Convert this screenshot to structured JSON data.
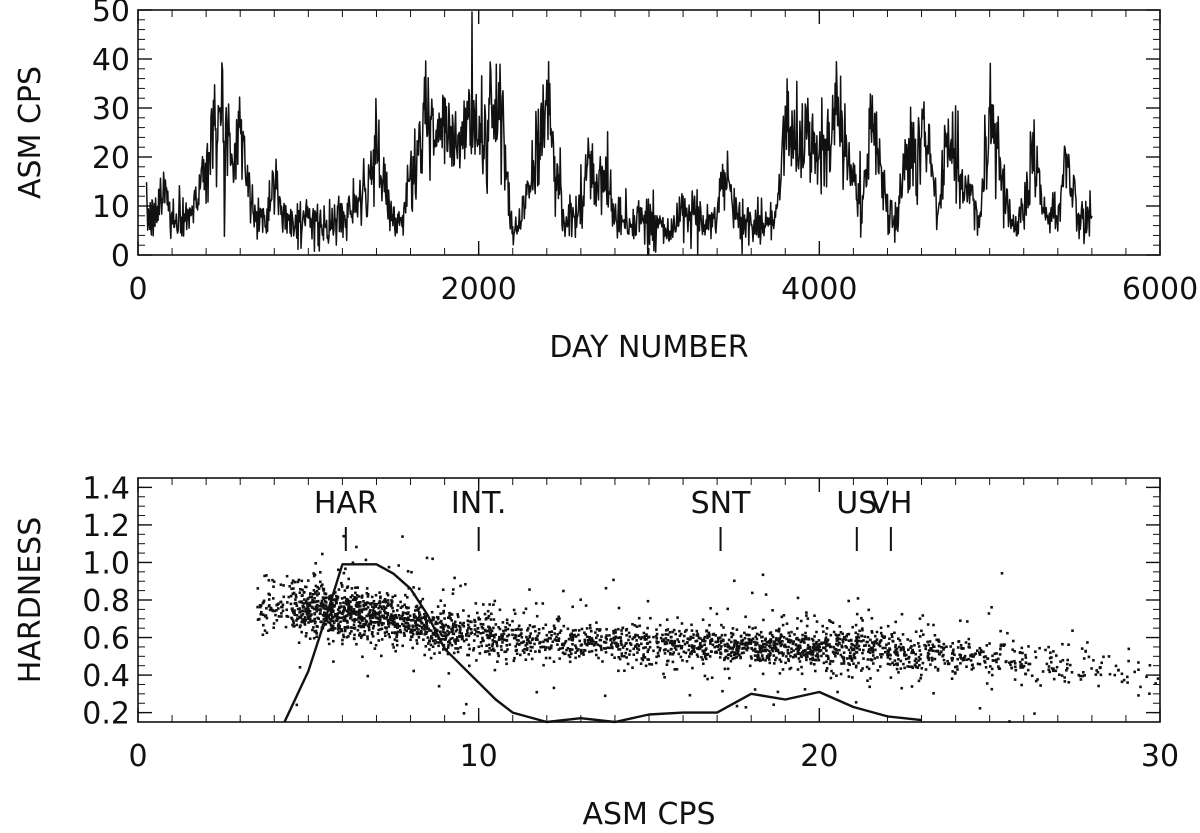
{
  "chart_data": [
    {
      "type": "line",
      "xlabel": "DAY NUMBER",
      "ylabel": "ASM CPS",
      "xlim": [
        0,
        6000
      ],
      "ylim": [
        0,
        50
      ],
      "xticks": [
        "0",
        "2000",
        "4000",
        "6000"
      ],
      "yticks": [
        "0",
        "10",
        "20",
        "30",
        "40",
        "50"
      ],
      "grid": false,
      "color": "#111111",
      "series": [
        {
          "x": [
            50,
            100,
            150,
            200,
            250,
            300,
            350,
            400,
            450,
            500,
            550,
            600,
            650,
            700,
            750,
            800,
            850,
            900,
            950,
            1000,
            1050,
            1100,
            1150,
            1200,
            1250,
            1300,
            1350,
            1400,
            1450,
            1500,
            1550,
            1600,
            1650,
            1700,
            1750,
            1800,
            1850,
            1900,
            1950,
            2000,
            2050,
            2100,
            2150,
            2200,
            2250,
            2300,
            2350,
            2400,
            2450,
            2500,
            2550,
            2600,
            2650,
            2700,
            2750,
            2800,
            2850,
            2900,
            2950,
            3000,
            3050,
            3100,
            3150,
            3200,
            3250,
            3300,
            3350,
            3400,
            3450,
            3500,
            3550,
            3600,
            3650,
            3700,
            3750,
            3800,
            3850,
            3900,
            3950,
            4000,
            4050,
            4100,
            4150,
            4200,
            4250,
            4300,
            4350,
            4400,
            4450,
            4500,
            4550,
            4600,
            4650,
            4700,
            4750,
            4800,
            4850,
            4900,
            4950,
            5000,
            5050,
            5100,
            5150,
            5200,
            5250,
            5300,
            5350,
            5400,
            5450,
            5500,
            5550,
            5600
          ],
          "y": [
            8,
            7,
            14,
            8,
            7,
            9,
            12,
            18,
            30,
            25,
            21,
            26,
            12,
            8,
            7,
            16,
            9,
            6,
            7,
            8,
            6,
            5,
            6,
            7,
            9,
            10,
            14,
            21,
            12,
            7,
            8,
            15,
            22,
            28,
            24,
            26,
            20,
            22,
            30,
            25,
            24,
            32,
            22,
            5,
            8,
            14,
            23,
            30,
            20,
            8,
            7,
            10,
            17,
            14,
            15,
            9,
            7,
            6,
            8,
            7,
            6,
            5,
            6,
            7,
            8,
            7,
            6,
            9,
            16,
            9,
            7,
            6,
            7,
            6,
            8,
            26,
            24,
            22,
            23,
            21,
            25,
            27,
            23,
            16,
            10,
            27,
            20,
            9,
            6,
            21,
            20,
            25,
            20,
            7,
            26,
            21,
            14,
            10,
            8,
            28,
            21,
            10,
            6,
            9,
            24,
            12,
            7,
            8,
            21,
            12,
            7,
            8
          ]
        }
      ]
    },
    {
      "type": "scatter",
      "xlabel": "ASM CPS",
      "ylabel": "HARDNESS",
      "xlim": [
        0,
        30
      ],
      "ylim": [
        0.15,
        1.45
      ],
      "xticks": [
        "0",
        "10",
        "20",
        "30"
      ],
      "yticks": [
        "0.2",
        "0.4",
        "0.6",
        "0.8",
        "1.0",
        "1.2",
        "1.4"
      ],
      "grid": false,
      "color": "#111111",
      "density": [
        {
          "x": 4.0,
          "y": 0.76,
          "n": 70
        },
        {
          "x": 5.0,
          "y": 0.76,
          "n": 220
        },
        {
          "x": 6.0,
          "y": 0.73,
          "n": 260
        },
        {
          "x": 7.0,
          "y": 0.71,
          "n": 230
        },
        {
          "x": 8.0,
          "y": 0.68,
          "n": 190
        },
        {
          "x": 9.0,
          "y": 0.64,
          "n": 150
        },
        {
          "x": 10.0,
          "y": 0.62,
          "n": 120
        },
        {
          "x": 11.0,
          "y": 0.6,
          "n": 100
        },
        {
          "x": 12.0,
          "y": 0.59,
          "n": 90
        },
        {
          "x": 13.0,
          "y": 0.58,
          "n": 90
        },
        {
          "x": 14.0,
          "y": 0.57,
          "n": 90
        },
        {
          "x": 15.0,
          "y": 0.56,
          "n": 90
        },
        {
          "x": 16.0,
          "y": 0.56,
          "n": 100
        },
        {
          "x": 17.0,
          "y": 0.55,
          "n": 120
        },
        {
          "x": 18.0,
          "y": 0.55,
          "n": 140
        },
        {
          "x": 19.0,
          "y": 0.55,
          "n": 150
        },
        {
          "x": 20.0,
          "y": 0.55,
          "n": 150
        },
        {
          "x": 21.0,
          "y": 0.55,
          "n": 130
        },
        {
          "x": 22.0,
          "y": 0.54,
          "n": 110
        },
        {
          "x": 23.0,
          "y": 0.52,
          "n": 90
        },
        {
          "x": 24.0,
          "y": 0.51,
          "n": 70
        },
        {
          "x": 25.0,
          "y": 0.49,
          "n": 55
        },
        {
          "x": 26.0,
          "y": 0.47,
          "n": 45
        },
        {
          "x": 27.0,
          "y": 0.46,
          "n": 35
        },
        {
          "x": 28.0,
          "y": 0.45,
          "n": 25
        },
        {
          "x": 29.0,
          "y": 0.42,
          "n": 18
        },
        {
          "x": 30.0,
          "y": 0.38,
          "n": 10
        }
      ],
      "histogram": {
        "x": [
          4.3,
          5.0,
          5.5,
          6.0,
          6.5,
          7.0,
          7.5,
          8.0,
          8.5,
          9.0,
          9.5,
          10.0,
          10.5,
          11.0,
          12.0,
          13.0,
          14.0,
          15.0,
          16.0,
          17.0,
          18.0,
          19.0,
          20.0,
          21.0,
          22.0,
          23.0
        ],
        "y": [
          0.15,
          0.42,
          0.7,
          0.99,
          0.99,
          0.99,
          0.94,
          0.86,
          0.72,
          0.54,
          0.45,
          0.36,
          0.27,
          0.2,
          0.15,
          0.17,
          0.15,
          0.19,
          0.2,
          0.2,
          0.3,
          0.27,
          0.31,
          0.23,
          0.18,
          0.16
        ]
      },
      "markers": [
        {
          "label": "HAR",
          "x": 6.1
        },
        {
          "label": "INT.",
          "x": 10.0
        },
        {
          "label": "SNT",
          "x": 17.1
        },
        {
          "label": "US",
          "x": 21.1
        },
        {
          "label": "VH",
          "x": 22.1
        }
      ]
    }
  ]
}
